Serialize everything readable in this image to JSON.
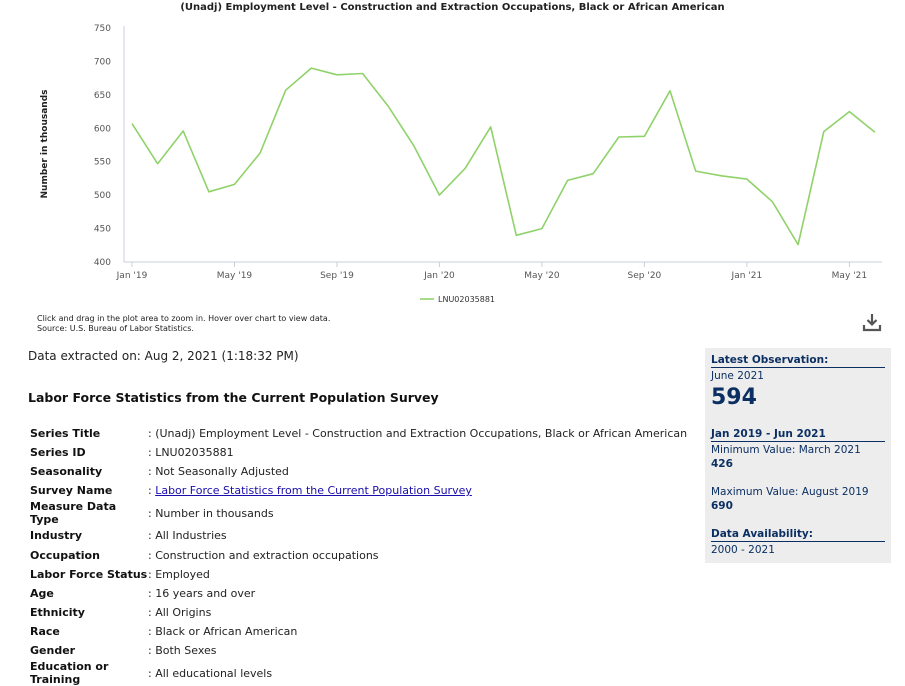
{
  "chart_data": {
    "type": "line",
    "title": "(Unadj) Employment Level - Construction and Extraction Occupations, Black or African American",
    "ylabel": "Number in thousands",
    "ylim": [
      400,
      750
    ],
    "yticks": [
      "750",
      "700",
      "650",
      "600",
      "550",
      "500",
      "450",
      "400"
    ],
    "xtick_labels": [
      "Jan '19",
      "May '19",
      "Sep '19",
      "Jan '20",
      "May '20",
      "Sep '20",
      "Jan '21",
      "May '21"
    ],
    "x": [
      "Jan 2019",
      "Feb 2019",
      "Mar 2019",
      "Apr 2019",
      "May 2019",
      "Jun 2019",
      "Jul 2019",
      "Aug 2019",
      "Sep 2019",
      "Oct 2019",
      "Nov 2019",
      "Dec 2019",
      "Jan 2020",
      "Feb 2020",
      "Mar 2020",
      "Apr 2020",
      "May 2020",
      "Jun 2020",
      "Jul 2020",
      "Aug 2020",
      "Sep 2020",
      "Oct 2020",
      "Nov 2020",
      "Dec 2020",
      "Jan 2021",
      "Feb 2021",
      "Mar 2021",
      "Apr 2021",
      "May 2021",
      "Jun 2021"
    ],
    "series": [
      {
        "name": "LNU02035881",
        "color": "#90d26a",
        "values": [
          607,
          547,
          596,
          505,
          516,
          563,
          657,
          690,
          680,
          682,
          633,
          574,
          500,
          540,
          602,
          440,
          450,
          522,
          532,
          587,
          588,
          656,
          536,
          529,
          524,
          490,
          426,
          595,
          625,
          594
        ]
      }
    ],
    "grid": false,
    "legend": "bottom-center"
  },
  "notes": {
    "line1": "Click and drag in the plot area to zoom in. Hover over chart to view data.",
    "line2": "Source: U.S. Bureau of Labor Statistics."
  },
  "download_icon": "download-icon",
  "extracted": "Data extracted on: Aug 2, 2021 (1:18:32 PM)",
  "section_title": "Labor Force Statistics from the Current Population Survey",
  "meta_rows": [
    {
      "key": "Series Title",
      "value": ": (Unadj) Employment Level - Construction and Extraction Occupations, Black or African American"
    },
    {
      "key": "Series ID",
      "value": ": LNU02035881"
    },
    {
      "key": "Seasonality",
      "value": ": Not Seasonally Adjusted"
    },
    {
      "key": "Survey Name",
      "value": "Labor Force Statistics from the Current Population Survey",
      "link": true
    },
    {
      "key": "Measure Data Type",
      "value": ": Number in thousands"
    },
    {
      "key": "Industry",
      "value": ": All Industries"
    },
    {
      "key": "Occupation",
      "value": ": Construction and extraction occupations"
    },
    {
      "key": "Labor Force Status",
      "value": ": Employed"
    },
    {
      "key": "Age",
      "value": ": 16 years and over"
    },
    {
      "key": "Ethnicity",
      "value": ": All Origins"
    },
    {
      "key": "Race",
      "value": ": Black or African American"
    },
    {
      "key": "Gender",
      "value": ": Both Sexes"
    },
    {
      "key": "Education or Training",
      "value": ": All educational levels"
    }
  ],
  "sidebar": {
    "latest_label": "Latest Observation:",
    "latest_period": "June 2021",
    "latest_value": "594",
    "range_label": "Jan 2019 - Jun 2021",
    "min_label": "Minimum Value: March 2021",
    "min_value": "426",
    "max_label": "Maximum Value: August 2019",
    "max_value": "690",
    "avail_label": "Data Availability:",
    "avail_value": "2000 - 2021"
  }
}
